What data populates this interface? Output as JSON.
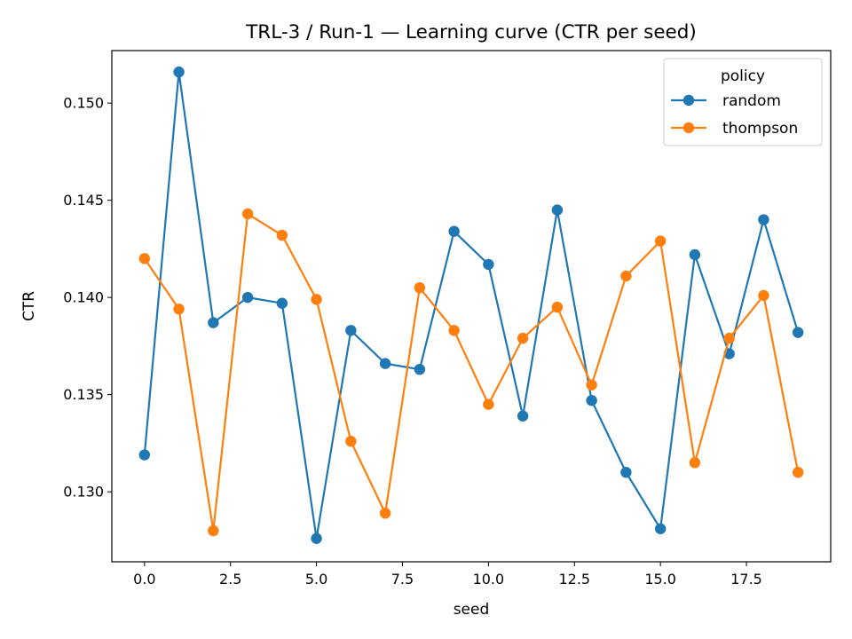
{
  "chart_data": {
    "type": "line",
    "title": "TRL-3 / Run-1 — Learning curve (CTR per seed)",
    "xlabel": "seed",
    "ylabel": "CTR",
    "xlim": [
      -0.95,
      19.95
    ],
    "ylim": [
      0.1264,
      0.1527
    ],
    "xticks": [
      0.0,
      2.5,
      5.0,
      7.5,
      10.0,
      12.5,
      15.0,
      17.5
    ],
    "xtick_labels": [
      "0.0",
      "2.5",
      "5.0",
      "7.5",
      "10.0",
      "12.5",
      "15.0",
      "17.5"
    ],
    "yticks": [
      0.13,
      0.135,
      0.14,
      0.145,
      0.15
    ],
    "ytick_labels": [
      "0.130",
      "0.135",
      "0.140",
      "0.145",
      "0.150"
    ],
    "grid": false,
    "legend": {
      "title": "policy",
      "placement": "upper-right"
    },
    "x": [
      0,
      1,
      2,
      3,
      4,
      5,
      6,
      7,
      8,
      9,
      10,
      11,
      12,
      13,
      14,
      15,
      16,
      17,
      18,
      19
    ],
    "series": [
      {
        "name": "random",
        "color": "#1f77b4",
        "values": [
          0.1319,
          0.1516,
          0.1387,
          0.14,
          0.1397,
          0.1276,
          0.1383,
          0.1366,
          0.1363,
          0.1434,
          0.1417,
          0.1339,
          0.1445,
          0.1347,
          0.131,
          0.1281,
          0.1422,
          0.1371,
          0.144,
          0.1382
        ]
      },
      {
        "name": "thompson",
        "color": "#ff7f0e",
        "values": [
          0.142,
          0.1394,
          0.128,
          0.1443,
          0.1432,
          0.1399,
          0.1326,
          0.1289,
          0.1405,
          0.1383,
          0.1345,
          0.1379,
          0.1395,
          0.1355,
          0.1411,
          0.1429,
          0.1315,
          0.1379,
          0.1401,
          0.131
        ]
      }
    ]
  }
}
